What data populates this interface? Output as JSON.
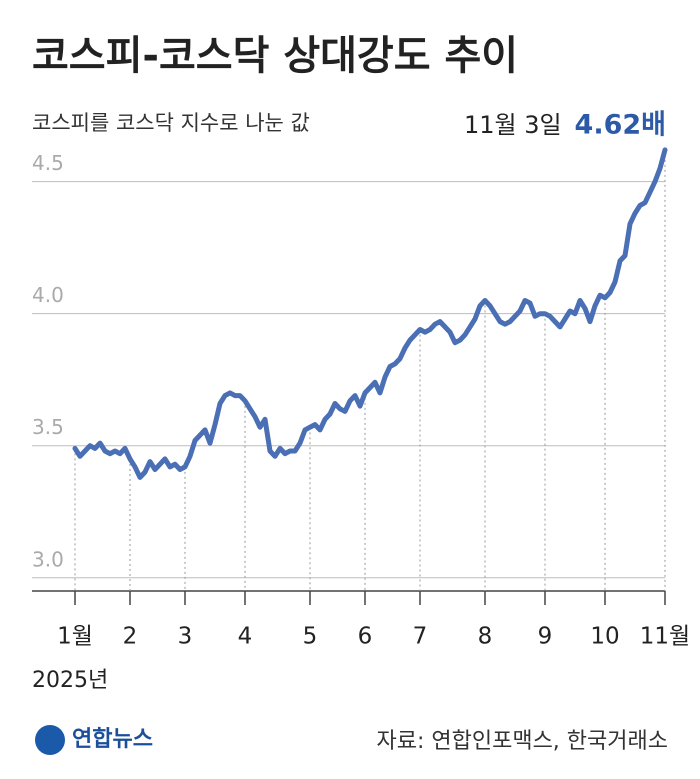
{
  "chart_data": {
    "type": "line",
    "title": "코스피-코스닥 상대강도 추이",
    "subtitle": "코스피를 코스닥 지수로 나눈 값",
    "annotation": "11월 3일",
    "x_label": "2025년",
    "source": "자료: 연합인포맥스, 한국거래소",
    "logo": "연합뉴스",
    "color": "#4a6fb5",
    "categories": [
      "1월",
      null,
      null,
      null,
      null,
      null,
      null,
      null,
      null,
      null,
      null,
      "2",
      null,
      null,
      null,
      null,
      null,
      null,
      null,
      null,
      null,
      null,
      "3",
      null,
      null,
      null,
      null,
      null,
      null,
      null,
      null,
      null,
      null,
      null,
      "4",
      null,
      null,
      null,
      null,
      null,
      null,
      null,
      null,
      null,
      null,
      null,
      null,
      "5",
      null,
      null,
      null,
      null,
      null,
      null,
      null,
      null,
      null,
      null,
      "6",
      null,
      null,
      null,
      null,
      null,
      null,
      null,
      null,
      null,
      null,
      "7",
      null,
      null,
      null,
      null,
      null,
      null,
      null,
      null,
      null,
      null,
      null,
      null,
      "8",
      null,
      null,
      null,
      null,
      null,
      null,
      null,
      null,
      null,
      null,
      null,
      "9",
      null,
      null,
      null,
      null,
      null,
      null,
      null,
      null,
      null,
      null,
      null,
      "10",
      null,
      null,
      null,
      null,
      null,
      null,
      null,
      null,
      null,
      null,
      null,
      "11월"
    ],
    "values": [
      3.49,
      3.46,
      3.48,
      3.5,
      3.49,
      3.51,
      3.48,
      3.47,
      3.48,
      3.47,
      3.49,
      3.45,
      3.42,
      3.38,
      3.4,
      3.44,
      3.41,
      3.43,
      3.45,
      3.42,
      3.43,
      3.41,
      3.42,
      3.46,
      3.52,
      3.54,
      3.56,
      3.51,
      3.58,
      3.66,
      3.69,
      3.7,
      3.69,
      3.69,
      3.67,
      3.64,
      3.61,
      3.57,
      3.6,
      3.48,
      3.46,
      3.49,
      3.47,
      3.48,
      3.48,
      3.51,
      3.56,
      3.57,
      3.58,
      3.56,
      3.6,
      3.62,
      3.66,
      3.64,
      3.63,
      3.67,
      3.69,
      3.65,
      3.7,
      3.72,
      3.74,
      3.7,
      3.76,
      3.8,
      3.81,
      3.83,
      3.87,
      3.9,
      3.92,
      3.94,
      3.93,
      3.94,
      3.96,
      3.97,
      3.95,
      3.93,
      3.89,
      3.9,
      3.92,
      3.95,
      3.98,
      4.03,
      4.05,
      4.03,
      4.0,
      3.97,
      3.96,
      3.97,
      3.99,
      4.01,
      4.05,
      4.04,
      3.99,
      4.0,
      4.0,
      3.99,
      3.97,
      3.95,
      3.98,
      4.01,
      4.0,
      4.05,
      4.02,
      3.97,
      4.03,
      4.07,
      4.06,
      4.08,
      4.12,
      4.2,
      4.22,
      4.34,
      4.38,
      4.41,
      4.42,
      4.46,
      4.5,
      4.55,
      4.62
    ],
    "value_labels": [
      null,
      null,
      null,
      null,
      null,
      null,
      null,
      null,
      null,
      null,
      null,
      null,
      null,
      null,
      null,
      null,
      null,
      null,
      null,
      null,
      null,
      null,
      null,
      null,
      null,
      null,
      null,
      null,
      null,
      null,
      null,
      null,
      null,
      null,
      null,
      null,
      null,
      null,
      null,
      null,
      null,
      null,
      null,
      null,
      null,
      null,
      null,
      null,
      null,
      null,
      null,
      null,
      null,
      null,
      null,
      null,
      null,
      null,
      null,
      null,
      null,
      null,
      null,
      null,
      null,
      null,
      null,
      null,
      null,
      null,
      null,
      null,
      null,
      null,
      null,
      null,
      null,
      null,
      null,
      null,
      null,
      null,
      null,
      null,
      null,
      null,
      null,
      null,
      null,
      null,
      null,
      null,
      null,
      null,
      null,
      null,
      null,
      null,
      null,
      null,
      null,
      null,
      null,
      null,
      null,
      null,
      null,
      null,
      null,
      null,
      null,
      null,
      null,
      null,
      null,
      null,
      null,
      null,
      "4.62배"
    ],
    "ylim": [
      2.95,
      4.65
    ],
    "yticks": [
      {
        "value": 3,
        "label": "3.0"
      },
      3.5,
      {
        "value": 4,
        "label": "4.0"
      },
      4.5
    ],
    "grid": true
  }
}
